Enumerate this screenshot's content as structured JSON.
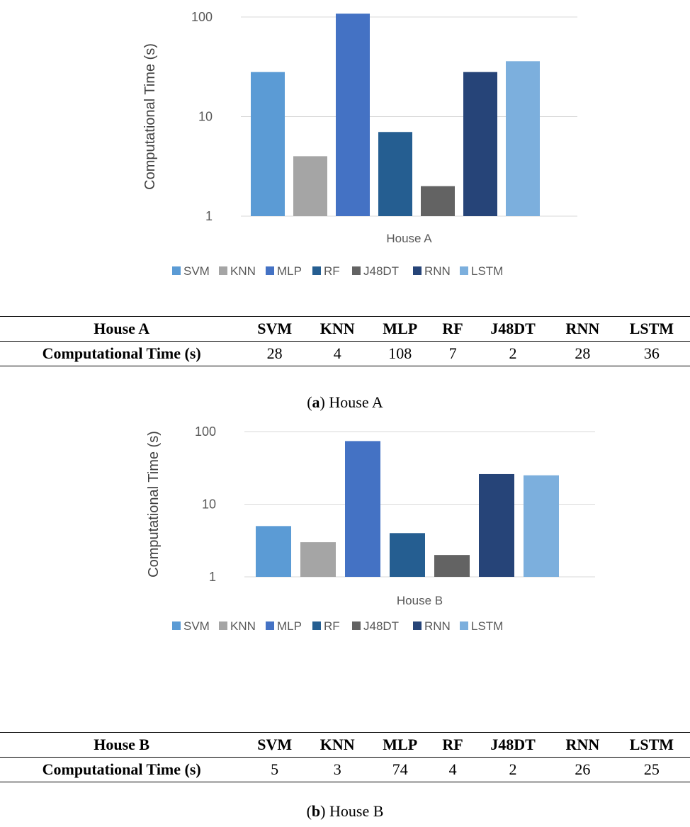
{
  "chart_data": [
    {
      "type": "bar",
      "panel": "a",
      "categories": [
        "House A"
      ],
      "series": [
        {
          "name": "SVM",
          "values": [
            28
          ],
          "color": "#5B9BD5"
        },
        {
          "name": "KNN",
          "values": [
            4
          ],
          "color": "#A5A5A5"
        },
        {
          "name": "MLP",
          "values": [
            108
          ],
          "color": "#4472C4"
        },
        {
          "name": "RF",
          "values": [
            7
          ],
          "color": "#255E91"
        },
        {
          "name": "J48DT",
          "values": [
            2
          ],
          "color": "#636363"
        },
        {
          "name": "RNN",
          "values": [
            28
          ],
          "color": "#264478"
        },
        {
          "name": "LSTM",
          "values": [
            36
          ],
          "color": "#7CAFDD"
        }
      ],
      "ylabel": "Computational Time (s)",
      "yscale": "log",
      "ylim": [
        1,
        100
      ],
      "yticks": [
        "1",
        "10",
        "100"
      ],
      "grid": true,
      "legend": "bottom"
    },
    {
      "type": "bar",
      "panel": "b",
      "categories": [
        "House B"
      ],
      "series": [
        {
          "name": "SVM",
          "values": [
            5
          ],
          "color": "#5B9BD5"
        },
        {
          "name": "KNN",
          "values": [
            3
          ],
          "color": "#A5A5A5"
        },
        {
          "name": "MLP",
          "values": [
            74
          ],
          "color": "#4472C4"
        },
        {
          "name": "RF",
          "values": [
            4
          ],
          "color": "#255E91"
        },
        {
          "name": "J48DT",
          "values": [
            2
          ],
          "color": "#636363"
        },
        {
          "name": "RNN",
          "values": [
            26
          ],
          "color": "#264478"
        },
        {
          "name": "LSTM",
          "values": [
            25
          ],
          "color": "#7CAFDD"
        }
      ],
      "ylabel": "Computational Time (s)",
      "yscale": "log",
      "ylim": [
        1,
        100
      ],
      "yticks": [
        "1",
        "10",
        "100"
      ],
      "grid": true,
      "legend": "bottom"
    }
  ],
  "tables": {
    "a": {
      "header": [
        "House A",
        "SVM",
        "KNN",
        "MLP",
        "RF",
        "J48DT",
        "RNN",
        "LSTM"
      ],
      "row": [
        "Computational Time (s)",
        "28",
        "4",
        "108",
        "7",
        "2",
        "28",
        "36"
      ]
    },
    "b": {
      "header": [
        "House B",
        "SVM",
        "KNN",
        "MLP",
        "RF",
        "J48DT",
        "RNN",
        "LSTM"
      ],
      "row": [
        "Computational Time (s)",
        "5",
        "3",
        "74",
        "4",
        "2",
        "26",
        "25"
      ]
    }
  },
  "captions": {
    "a": {
      "letter": "a",
      "text": "House A"
    },
    "b": {
      "letter": "b",
      "text": "House B"
    }
  }
}
